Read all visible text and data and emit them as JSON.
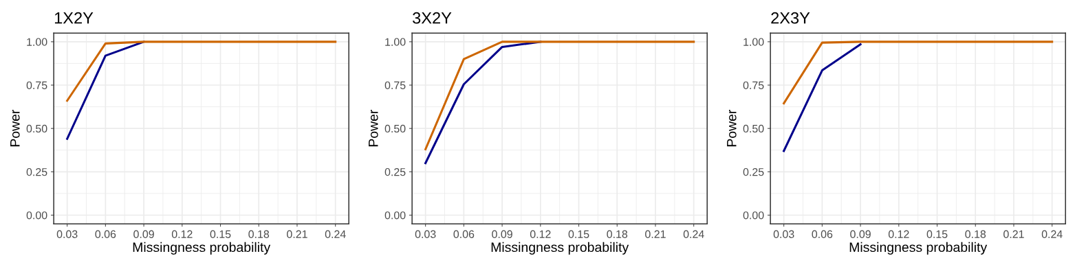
{
  "chart_data": [
    {
      "type": "line",
      "title": "1X2Y",
      "xlabel": "Missingness probability",
      "ylabel": "Power",
      "x": [
        0.03,
        0.06,
        0.09,
        0.12,
        0.15,
        0.18,
        0.21,
        0.24
      ],
      "xlim": [
        0.0195,
        0.2505
      ],
      "xticks": [
        0.03,
        0.06,
        0.09,
        0.12,
        0.15,
        0.18,
        0.21,
        0.24
      ],
      "ylim": [
        -0.05,
        1.05
      ],
      "yticks": [
        {
          "value": 0,
          "label": "0.00"
        },
        {
          "value": 0.25,
          "label": "0.25"
        },
        {
          "value": 0.5,
          "label": "0.50"
        },
        {
          "value": 0.75,
          "label": "0.75"
        },
        {
          "value": 1,
          "label": "1.00"
        }
      ],
      "grid": true,
      "legend": false,
      "series": [
        {
          "color": "#00008b",
          "values": [
            0.44,
            0.92,
            1.0,
            null,
            null,
            null,
            null,
            null
          ]
        },
        {
          "color": "#cd6600",
          "values": [
            0.66,
            0.99,
            1.0,
            1.0,
            1.0,
            1.0,
            1.0,
            1.0
          ]
        }
      ]
    },
    {
      "type": "line",
      "title": "3X2Y",
      "xlabel": "Missingness probability",
      "ylabel": "Power",
      "x": [
        0.03,
        0.06,
        0.09,
        0.12,
        0.15,
        0.18,
        0.21,
        0.24
      ],
      "xlim": [
        0.0195,
        0.2505
      ],
      "xticks": [
        0.03,
        0.06,
        0.09,
        0.12,
        0.15,
        0.18,
        0.21,
        0.24
      ],
      "ylim": [
        -0.05,
        1.05
      ],
      "yticks": [
        {
          "value": 0,
          "label": "0.00"
        },
        {
          "value": 0.25,
          "label": "0.25"
        },
        {
          "value": 0.5,
          "label": "0.50"
        },
        {
          "value": 0.75,
          "label": "0.75"
        },
        {
          "value": 1,
          "label": "1.00"
        }
      ],
      "grid": true,
      "legend": false,
      "series": [
        {
          "color": "#00008b",
          "values": [
            0.3,
            0.755,
            0.97,
            1.0,
            null,
            null,
            null,
            null
          ]
        },
        {
          "color": "#cd6600",
          "values": [
            0.38,
            0.9,
            1.0,
            1.0,
            1.0,
            1.0,
            1.0,
            1.0
          ]
        }
      ]
    },
    {
      "type": "line",
      "title": "2X3Y",
      "xlabel": "Missingness probability",
      "ylabel": "Power",
      "x": [
        0.03,
        0.06,
        0.09,
        0.12,
        0.15,
        0.18,
        0.21,
        0.24
      ],
      "xlim": [
        0.0195,
        0.2505
      ],
      "xticks": [
        0.03,
        0.06,
        0.09,
        0.12,
        0.15,
        0.18,
        0.21,
        0.24
      ],
      "ylim": [
        -0.05,
        1.05
      ],
      "yticks": [
        {
          "value": 0,
          "label": "0.00"
        },
        {
          "value": 0.25,
          "label": "0.25"
        },
        {
          "value": 0.5,
          "label": "0.50"
        },
        {
          "value": 0.75,
          "label": "0.75"
        },
        {
          "value": 1,
          "label": "1.00"
        }
      ],
      "grid": true,
      "legend": false,
      "series": [
        {
          "color": "#00008b",
          "values": [
            0.37,
            0.835,
            0.985,
            null,
            null,
            null,
            null,
            null
          ]
        },
        {
          "color": "#cd6600",
          "values": [
            0.645,
            0.995,
            1.0,
            1.0,
            1.0,
            1.0,
            1.0,
            1.0
          ]
        }
      ]
    }
  ]
}
